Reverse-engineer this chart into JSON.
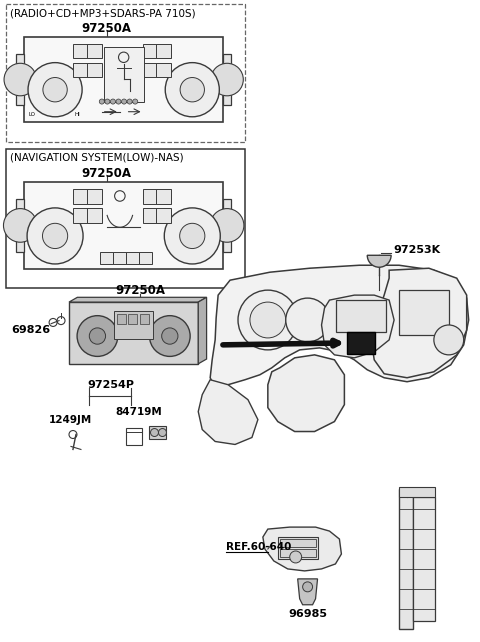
{
  "bg_color": "#ffffff",
  "line_color": "#3a3a3a",
  "text_color": "#000000",
  "fig_width": 4.8,
  "fig_height": 6.42,
  "dpi": 100,
  "labels": {
    "radio_title": "(RADIO+CD+MP3+SDARS-PA 710S)",
    "nav_title": "(NAVIGATION SYSTEM(LOW)-NAS)",
    "p97250A_1": "97250A",
    "p97250A_2": "97250A",
    "p97250A_3": "97250A",
    "p97253K": "97253K",
    "p97254P": "97254P",
    "p84719M": "84719M",
    "p1249JM": "1249JM",
    "p69826": "69826",
    "pref": "REF.60-640",
    "p96985": "96985"
  }
}
